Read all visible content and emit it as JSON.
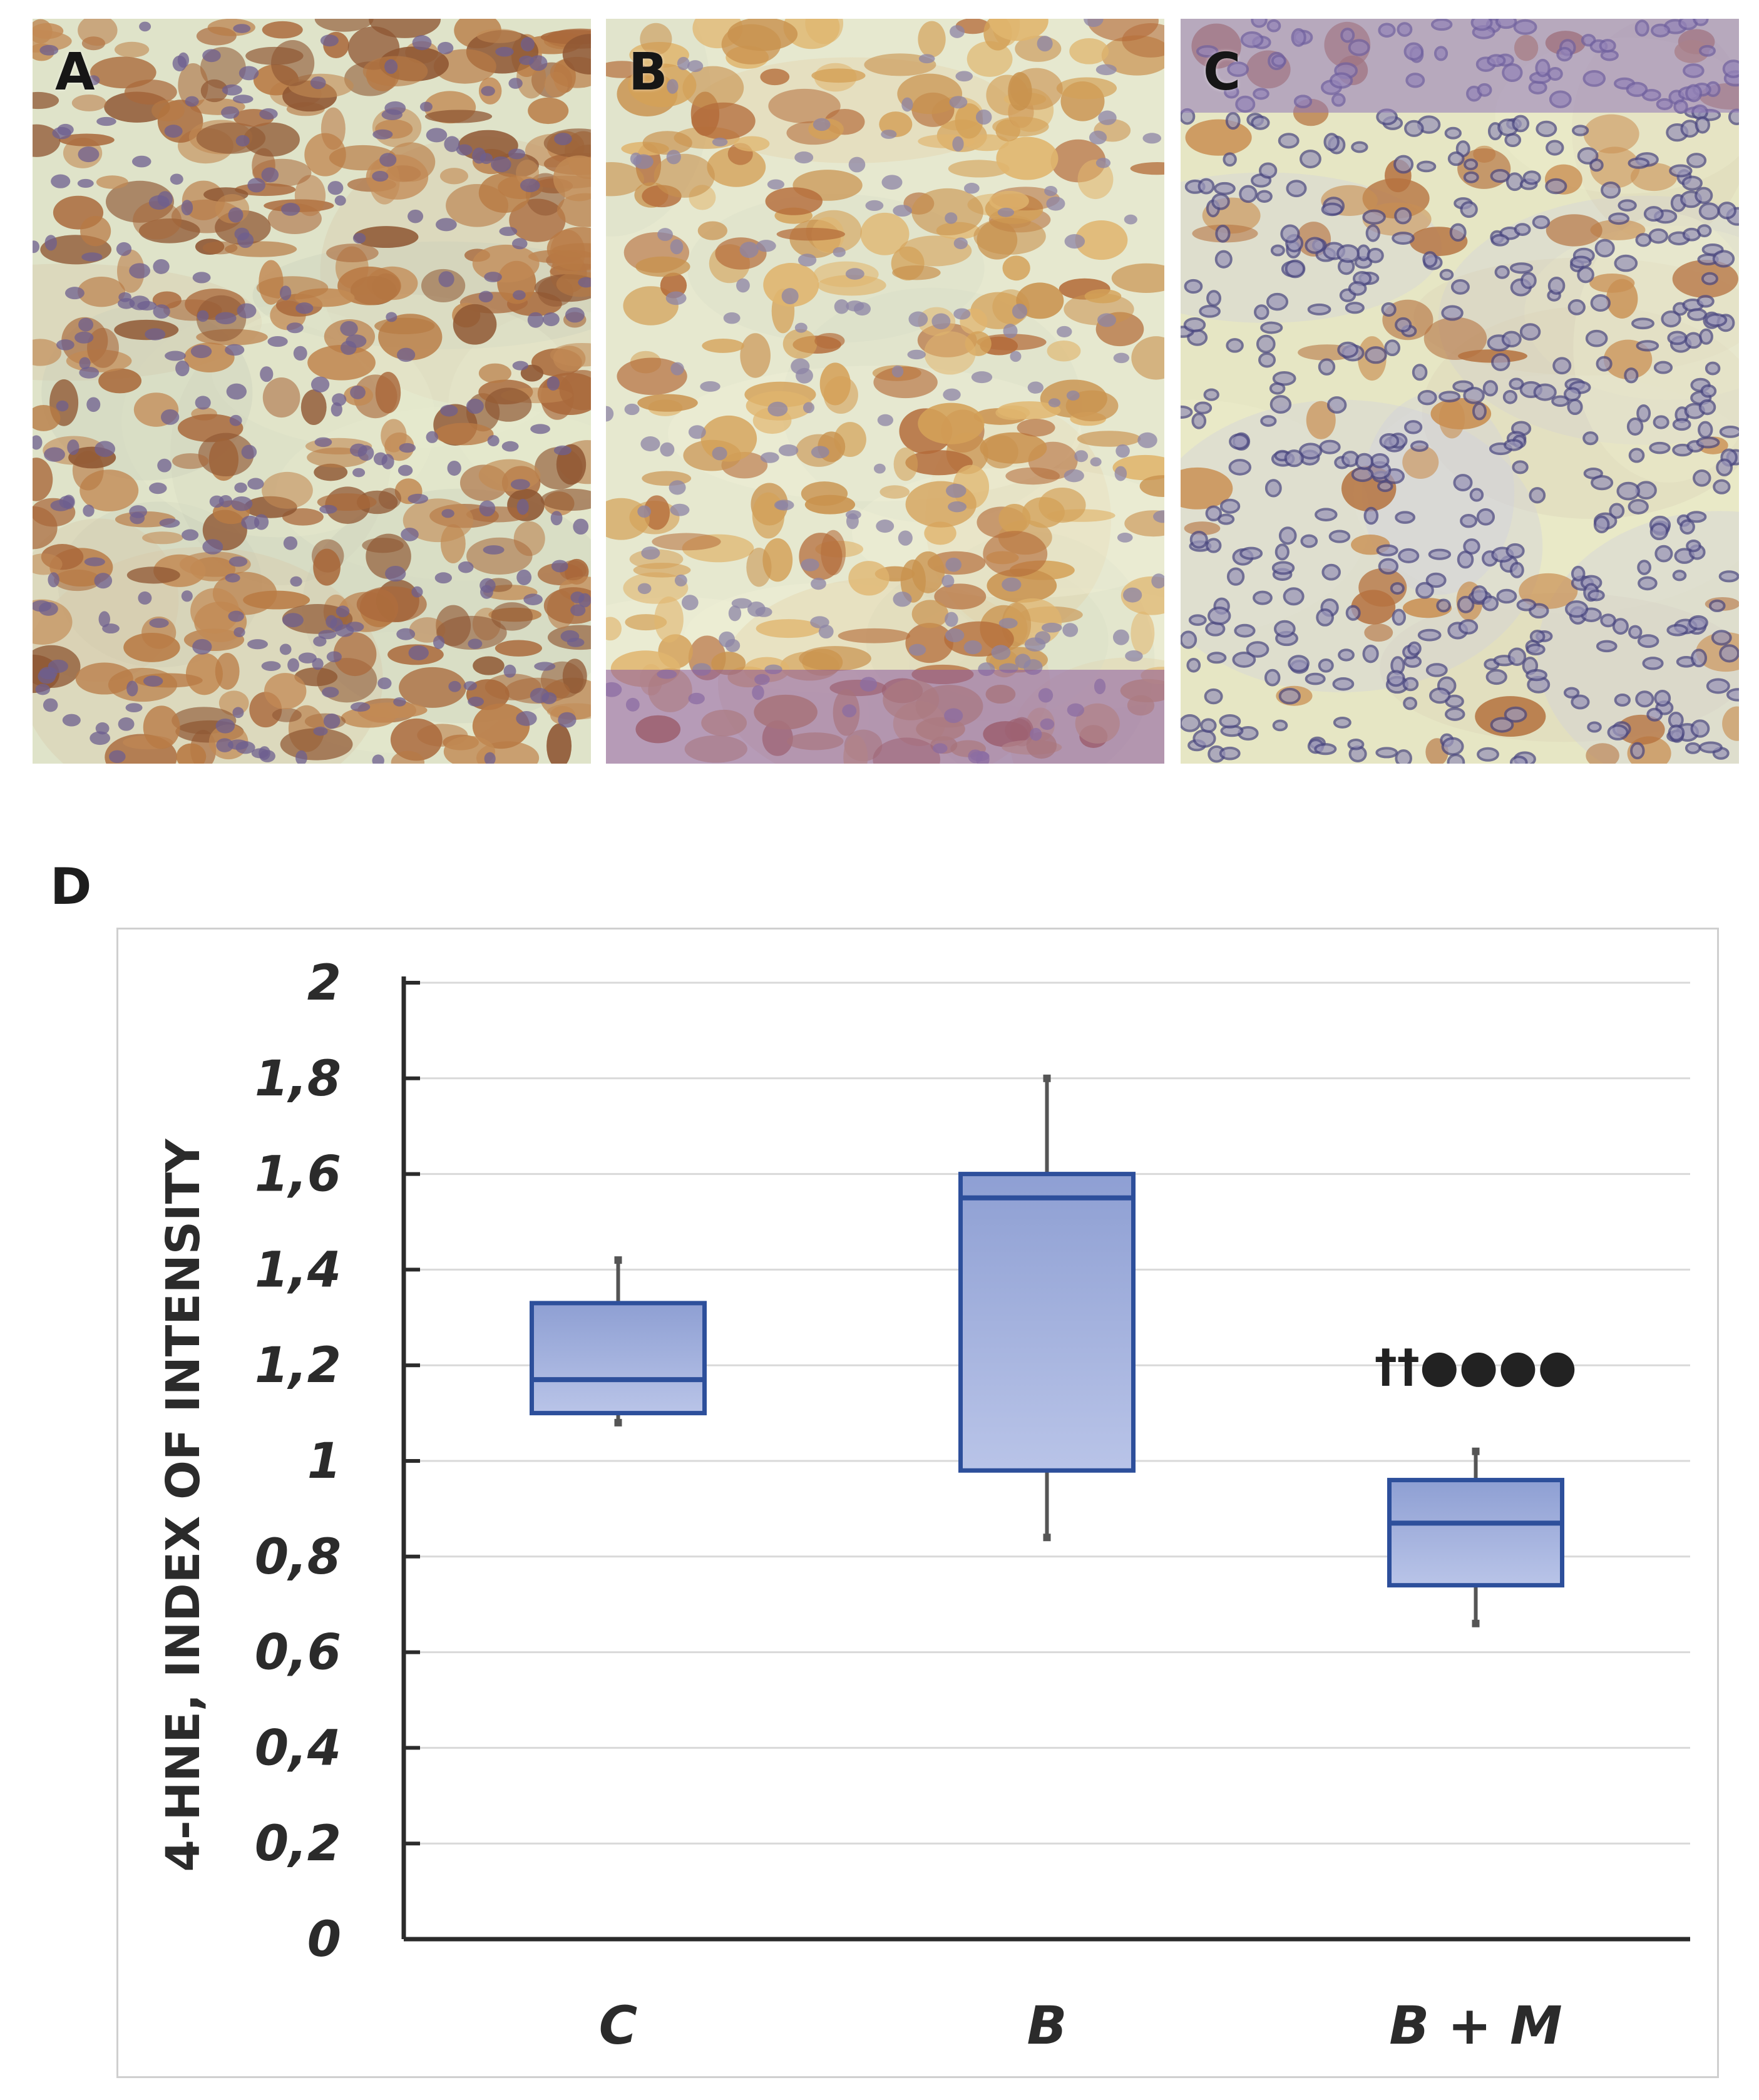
{
  "panels": [
    {
      "letter": "A"
    },
    {
      "letter": "B"
    },
    {
      "letter": "C"
    }
  ],
  "chart_label": "D",
  "chart_data": {
    "type": "box",
    "ylabel": "4-HNE, INDEX OF INTENSITY",
    "xlabel": "",
    "ylim": [
      0,
      2
    ],
    "yticks": [
      "0",
      "0,2",
      "0,4",
      "0,6",
      "0,8",
      "1",
      "1,2",
      "1,4",
      "1,6",
      "1,8",
      "2"
    ],
    "ytick_values": [
      0,
      0.2,
      0.4,
      0.6,
      0.8,
      1.0,
      1.2,
      1.4,
      1.6,
      1.8,
      2.0
    ],
    "grid": true,
    "categories": [
      "C",
      "B",
      "B + M"
    ],
    "boxes": [
      {
        "category": "C",
        "min": 1.08,
        "q1": 1.1,
        "median": 1.17,
        "q3": 1.33,
        "max": 1.42,
        "annotation": ""
      },
      {
        "category": "B",
        "min": 0.84,
        "q1": 0.98,
        "median": 1.55,
        "q3": 1.6,
        "max": 1.8,
        "annotation": ""
      },
      {
        "category": "B + M",
        "min": 0.66,
        "q1": 0.74,
        "median": 0.87,
        "q3": 0.96,
        "max": 1.02,
        "annotation": "††●●●●"
      }
    ],
    "colors": {
      "box_fill": "#a3b1dc",
      "box_stroke": "#2d4f9b",
      "whisker": "#555555",
      "grid": "#d9d9d9"
    }
  }
}
